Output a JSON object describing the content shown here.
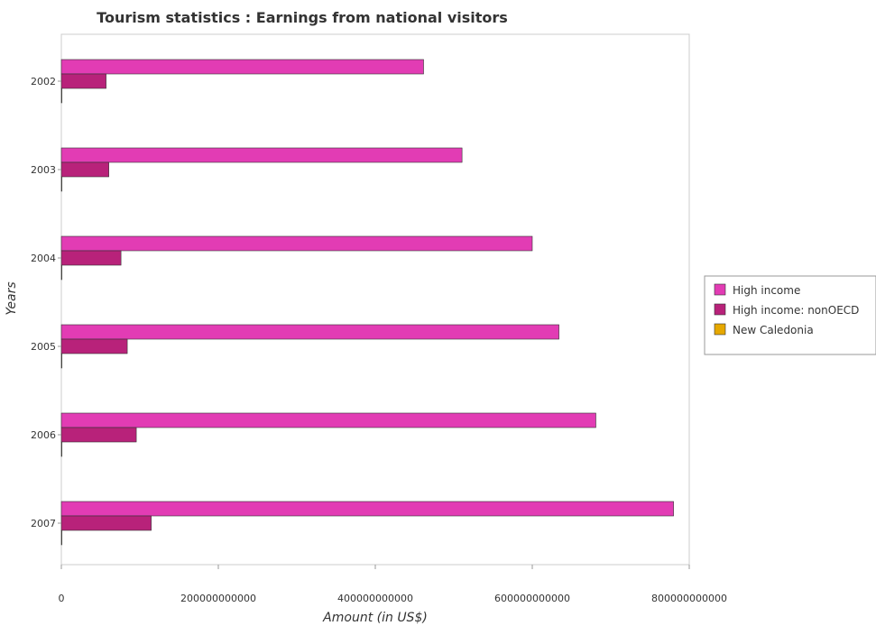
{
  "chart_data": {
    "type": "bar",
    "orientation": "horizontal",
    "title": "Tourism statistics : Earnings from national visitors",
    "xlabel": "Amount (in US$)",
    "ylabel": "Years",
    "categories": [
      "2002",
      "2003",
      "2004",
      "2005",
      "2006",
      "2007"
    ],
    "xlim": [
      0,
      800000000000
    ],
    "xticks": [
      0,
      200000000000,
      400000000000,
      600000000000,
      800000000000
    ],
    "xtick_labels": [
      "0",
      "200000000000",
      "400000000000",
      "600000000000",
      "800000000000"
    ],
    "grid": false,
    "legend_position": "right",
    "series": [
      {
        "name": "High income",
        "color": "#e23cb4",
        "values": [
          461500000000,
          510500000000,
          600000000000,
          634000000000,
          681000000000,
          780000000000
        ]
      },
      {
        "name": "High income: nonOECD",
        "color": "#b8227a",
        "values": [
          57000000000,
          60500000000,
          76000000000,
          84000000000,
          95500000000,
          114500000000
        ]
      },
      {
        "name": "New Caledonia",
        "color": "#e6a800",
        "values": [
          130000000,
          180000000,
          240000000,
          250000000,
          260000000,
          290000000
        ]
      }
    ]
  }
}
